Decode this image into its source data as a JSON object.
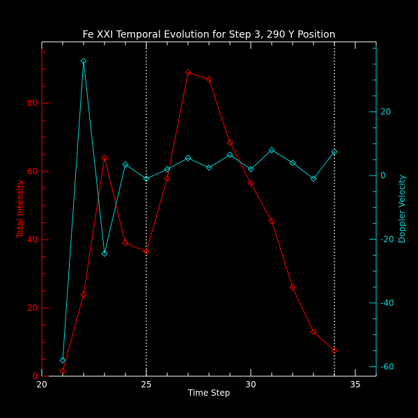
{
  "chart_data": {
    "type": "line",
    "title": "Fe XXI Temporal Evolution for Step 3, 290 Y Position",
    "xlabel": "Time Step",
    "ylabel_left": "Total Intensity",
    "ylabel_right": "Doppler Velocity",
    "xlim": [
      20,
      36
    ],
    "ylim_left": [
      0,
      98
    ],
    "ylim_right": [
      -63,
      42
    ],
    "x_ticks": [
      20,
      25,
      30,
      35
    ],
    "y_left_ticks": [
      0,
      20,
      40,
      60,
      80
    ],
    "y_right_ticks": [
      -60,
      -40,
      -20,
      0,
      20
    ],
    "vlines": [
      25,
      34
    ],
    "colors": {
      "intensity": "#ff0000",
      "velocity": "#00d8d8",
      "axes": "#ffffff",
      "background": "#000000"
    },
    "series": [
      {
        "name": "Total Intensity",
        "axis": "left",
        "x": [
          21,
          22,
          23,
          24,
          25,
          26,
          27,
          28,
          29,
          30,
          31,
          32,
          33,
          34
        ],
        "values": [
          1.5,
          24,
          64,
          39,
          36.5,
          58,
          89,
          87,
          68.5,
          56.5,
          45.5,
          26,
          13,
          7.5
        ]
      },
      {
        "name": "Doppler Velocity",
        "axis": "right",
        "x": [
          21,
          22,
          23,
          24,
          25,
          26,
          27,
          28,
          29,
          30,
          31,
          32,
          33,
          34
        ],
        "values": [
          -58,
          36,
          -24.5,
          3.5,
          -1,
          2,
          5.5,
          2.5,
          6.5,
          2,
          8,
          4,
          -1,
          7.5
        ]
      }
    ]
  }
}
